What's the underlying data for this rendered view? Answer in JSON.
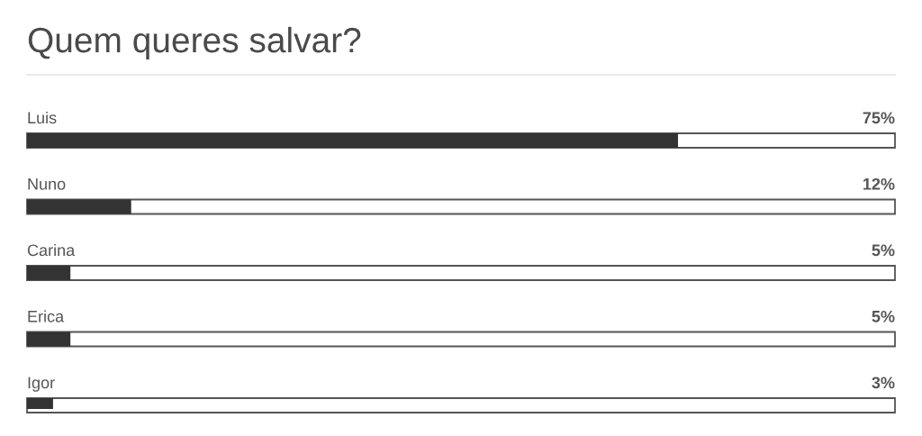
{
  "chart_data": {
    "type": "bar",
    "orientation": "horizontal",
    "title": "Quem queres salvar?",
    "categories": [
      "Luis",
      "Nuno",
      "Carina",
      "Erica",
      "Igor"
    ],
    "values": [
      75,
      12,
      5,
      5,
      3
    ],
    "value_labels": [
      "75%",
      "12%",
      "5%",
      "5%",
      "3%"
    ],
    "color": "#333333",
    "xlim": [
      0,
      100
    ],
    "tick_labels": "y"
  }
}
